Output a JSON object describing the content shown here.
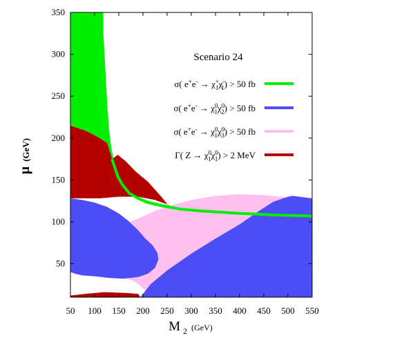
{
  "chart_data": {
    "type": "area",
    "title": "Scenario 24",
    "xlabel": "M2 (GeV)",
    "ylabel": "μ (GeV)",
    "xlim": [
      50,
      550
    ],
    "ylim": [
      10,
      350
    ],
    "xticks": [
      50,
      100,
      150,
      200,
      250,
      300,
      350,
      400,
      450,
      500,
      550
    ],
    "yticks": [
      50,
      100,
      150,
      200,
      250,
      300,
      350
    ],
    "grid": false,
    "legend_position": "right",
    "series": [
      {
        "name": "σ( e+e- → χ1+χ1- ) > 50 fb",
        "color": "#00ee00",
        "region": [
          [
            50,
            350
          ],
          [
            118,
            350
          ],
          [
            118,
            325
          ],
          [
            121,
            295
          ],
          [
            124,
            262
          ],
          [
            127,
            233
          ],
          [
            130,
            210
          ],
          [
            134,
            190
          ],
          [
            140,
            172
          ],
          [
            148,
            157
          ],
          [
            158,
            146
          ],
          [
            172,
            136
          ],
          [
            190,
            130
          ],
          [
            210,
            125
          ],
          [
            240,
            121
          ],
          [
            280,
            117
          ],
          [
            320,
            115
          ],
          [
            400,
            112
          ],
          [
            480,
            110
          ],
          [
            550,
            108
          ],
          [
            550,
            106
          ],
          [
            400,
            110
          ],
          [
            320,
            113
          ],
          [
            280,
            115
          ],
          [
            240,
            119
          ],
          [
            210,
            123
          ],
          [
            190,
            128
          ],
          [
            172,
            134
          ],
          [
            158,
            144
          ],
          [
            148,
            154
          ],
          [
            140,
            168
          ],
          [
            136,
            175
          ],
          [
            126,
            194
          ],
          [
            110,
            200
          ],
          [
            95,
            205
          ],
          [
            80,
            209
          ],
          [
            65,
            212
          ],
          [
            50,
            215
          ]
        ],
        "boundary": [
          [
            136,
            175
          ],
          [
            140,
            168
          ],
          [
            148,
            154
          ],
          [
            158,
            144
          ],
          [
            172,
            134
          ],
          [
            190,
            128
          ],
          [
            210,
            123
          ],
          [
            240,
            119
          ],
          [
            280,
            115
          ],
          [
            320,
            113
          ],
          [
            400,
            110
          ],
          [
            480,
            108
          ],
          [
            550,
            107
          ]
        ]
      },
      {
        "name": "σ( e+e- → χ1°χ2° ) > 50 fb",
        "color": "#4d4df5",
        "regions": [
          [
            [
              50,
              128
            ],
            [
              75,
              126
            ],
            [
              100,
              123
            ],
            [
              125,
              118
            ],
            [
              150,
              110
            ],
            [
              170,
              101
            ],
            [
              190,
              90
            ],
            [
              205,
              80
            ],
            [
              220,
              72
            ],
            [
              230,
              63
            ],
            [
              232,
              55
            ],
            [
              225,
              45
            ],
            [
              210,
              38
            ],
            [
              190,
              34
            ],
            [
              160,
              32
            ],
            [
              130,
              33
            ],
            [
              100,
              35
            ],
            [
              75,
              36
            ],
            [
              60,
              38
            ],
            [
              50,
              40
            ]
          ],
          [
            [
              195,
              10
            ],
            [
              215,
              25
            ],
            [
              250,
              42
            ],
            [
              300,
              62
            ],
            [
              350,
              80
            ],
            [
              400,
              97
            ],
            [
              440,
              113
            ],
            [
              470,
              124
            ],
            [
              500,
              130
            ],
            [
              510,
              131
            ],
            [
              550,
              128
            ],
            [
              550,
              10
            ]
          ]
        ]
      },
      {
        "name": "σ( e+e- → χ1°χ3° ) > 50 fb",
        "color": "#ffc0ef",
        "region": [
          [
            82,
            72
          ],
          [
            85,
            62
          ],
          [
            92,
            52
          ],
          [
            105,
            45
          ],
          [
            125,
            40
          ],
          [
            150,
            37
          ],
          [
            185,
            28
          ],
          [
            210,
            16
          ],
          [
            240,
            34
          ],
          [
            260,
            44
          ],
          [
            300,
            60
          ],
          [
            350,
            78
          ],
          [
            400,
            95
          ],
          [
            450,
            110
          ],
          [
            505,
            126
          ],
          [
            500,
            129
          ],
          [
            450,
            132
          ],
          [
            400,
            133
          ],
          [
            350,
            131
          ],
          [
            300,
            126
          ],
          [
            260,
            120
          ],
          [
            225,
            113
          ],
          [
            195,
            105
          ],
          [
            165,
            98
          ],
          [
            140,
            92
          ],
          [
            115,
            86
          ],
          [
            100,
            82
          ],
          [
            90,
            78
          ]
        ]
      },
      {
        "name": "Γ( Z → χ1°χ1° ) > 2 MeV",
        "color": "#b50000",
        "regions": [
          [
            [
              50,
              215
            ],
            [
              65,
              212
            ],
            [
              80,
              209
            ],
            [
              95,
              205
            ],
            [
              110,
              200
            ],
            [
              126,
              194
            ],
            [
              136,
              175
            ],
            [
              148,
              180
            ],
            [
              165,
              172
            ],
            [
              185,
              160
            ],
            [
              210,
              148
            ],
            [
              235,
              132
            ],
            [
              255,
              118
            ],
            [
              275,
              108
            ],
            [
              300,
              95
            ],
            [
              330,
              84
            ],
            [
              360,
              80
            ],
            [
              400,
              76
            ],
            [
              450,
              73
            ],
            [
              500,
              70
            ],
            [
              550,
              66
            ],
            [
              550,
              69
            ],
            [
              500,
              73
            ],
            [
              450,
              77
            ],
            [
              400,
              80
            ],
            [
              360,
              84
            ],
            [
              330,
              90
            ],
            [
              300,
              102
            ],
            [
              275,
              112
            ],
            [
              250,
              121
            ],
            [
              225,
              126
            ],
            [
              190,
              130
            ],
            [
              150,
              130
            ],
            [
              110,
              128
            ],
            [
              80,
              128
            ],
            [
              50,
              128
            ]
          ],
          [
            [
              50,
              12
            ],
            [
              80,
              14
            ],
            [
              120,
              16
            ],
            [
              165,
              15
            ],
            [
              190,
              14
            ],
            [
              195,
              10
            ],
            [
              50,
              10
            ]
          ]
        ]
      }
    ]
  },
  "axis": {
    "xlabel_main": "M",
    "xlabel_sub": "2",
    "xlabel_unit": "(GeV)",
    "ylabel_main": "μ",
    "ylabel_unit": "(GeV)"
  },
  "legend": {
    "items": [
      {
        "text_pre": "σ( e",
        "sup1": "+",
        "text_mid1": "e",
        "sup2": "-",
        "arrow": " → χ",
        "a_sup": "+",
        "a_sub": "1",
        "b": "χ",
        "b_sup": "-",
        "b_sub": "1",
        "text_post": ") > 50 fb"
      },
      {
        "text_pre": "σ( e",
        "sup1": "+",
        "text_mid1": "e",
        "sup2": "-",
        "arrow": " → χ",
        "a_sup": "0",
        "a_sub": "1",
        "b": "χ",
        "b_sup": "0",
        "b_sub": "2",
        "text_post": ") > 50 fb"
      },
      {
        "text_pre": "σ( e",
        "sup1": "+",
        "text_mid1": "e",
        "sup2": "-",
        "arrow": " → χ",
        "a_sup": "0",
        "a_sub": "1",
        "b": "χ",
        "b_sup": "0",
        "b_sub": "3",
        "text_post": ") > 50 fb"
      },
      {
        "text_pre": "Γ( Z",
        "sup1": "",
        "text_mid1": "",
        "sup2": "",
        "arrow": " → χ",
        "a_sup": "0",
        "a_sub": "1",
        "b": "χ",
        "b_sup": "0",
        "b_sub": "1",
        "text_post": ") > 2 MeV"
      }
    ]
  }
}
